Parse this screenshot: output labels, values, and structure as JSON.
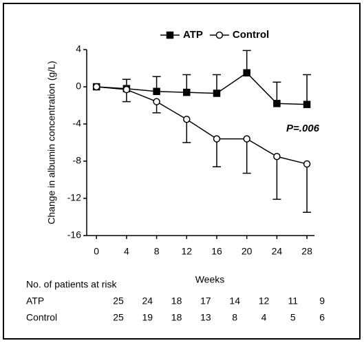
{
  "chart_data": {
    "type": "line",
    "y_label": "Change in albumin concentration (g/L)",
    "x_label": "Weeks",
    "x": [
      0,
      4,
      8,
      12,
      16,
      20,
      24,
      28
    ],
    "series": [
      {
        "name": "ATP",
        "color": "#000000",
        "marker": "filled-square",
        "error_direction": "up",
        "values": [
          0,
          -0.2,
          -0.5,
          -0.6,
          -0.7,
          1.5,
          -1.8,
          -1.9
        ],
        "errors": [
          null,
          1.0,
          1.6,
          1.9,
          2.0,
          2.4,
          2.3,
          3.2
        ]
      },
      {
        "name": "Control",
        "color": "#000000",
        "marker": "open-circle",
        "error_direction": "down",
        "values": [
          0,
          -0.3,
          -1.6,
          -3.5,
          -5.6,
          -5.6,
          -7.5,
          -8.3
        ],
        "errors": [
          null,
          1.3,
          1.2,
          2.5,
          3.0,
          3.7,
          4.6,
          5.2
        ]
      }
    ],
    "xlim": [
      -1.3,
      29
    ],
    "xticks": [
      0,
      4,
      8,
      12,
      16,
      20,
      24,
      28
    ],
    "ylim": [
      -16,
      4
    ],
    "yticks": [
      4,
      0,
      -4,
      -8,
      -12,
      -16
    ],
    "annotation": "P=.006",
    "risk_table": {
      "title": "No. of patients at risk",
      "rows": [
        {
          "name": "ATP",
          "values": [
            25,
            24,
            18,
            17,
            14,
            12,
            11,
            9
          ]
        },
        {
          "name": "Control",
          "values": [
            25,
            19,
            18,
            13,
            8,
            4,
            5,
            6
          ]
        }
      ]
    }
  }
}
